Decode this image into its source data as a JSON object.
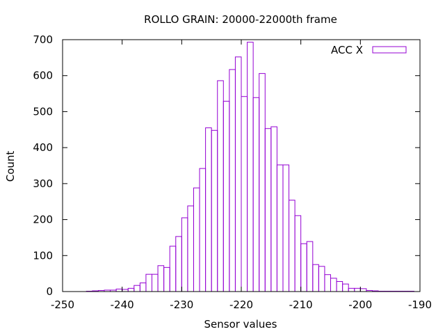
{
  "chart_data": {
    "type": "bar",
    "title": "ROLLO GRAIN: 20000-22000th frame",
    "xlabel": "Sensor values",
    "ylabel": "Count",
    "xlim": [
      -250,
      -190
    ],
    "ylim": [
      0,
      700
    ],
    "xticks": [
      -250,
      -240,
      -230,
      -220,
      -210,
      -200,
      -190
    ],
    "yticks": [
      0,
      100,
      200,
      300,
      400,
      500,
      600,
      700
    ],
    "grid": false,
    "legend_position": "top-right",
    "bin_width": 1,
    "series": [
      {
        "name": "ACC X",
        "color": "#9400D3",
        "bin_starts": [
          -246,
          -245,
          -244,
          -243,
          -242,
          -241,
          -240,
          -239,
          -238,
          -237,
          -236,
          -235,
          -234,
          -233,
          -232,
          -231,
          -230,
          -229,
          -228,
          -227,
          -226,
          -225,
          -224,
          -223,
          -222,
          -221,
          -220,
          -219,
          -218,
          -217,
          -216,
          -215,
          -214,
          -213,
          -212,
          -211,
          -210,
          -209,
          -208,
          -207,
          -206,
          -205,
          -204,
          -203,
          -202,
          -201,
          -200,
          -199,
          -198,
          -197,
          -196,
          -195,
          -194,
          -193,
          -192
        ],
        "values": [
          1,
          2,
          3,
          4,
          4,
          7,
          6,
          9,
          17,
          24,
          48,
          48,
          72,
          67,
          126,
          153,
          205,
          238,
          288,
          342,
          455,
          448,
          586,
          529,
          617,
          652,
          542,
          693,
          539,
          606,
          453,
          458,
          352,
          352,
          254,
          211,
          133,
          139,
          75,
          70,
          47,
          37,
          28,
          21,
          9,
          9,
          8,
          3,
          2,
          1,
          1,
          1,
          1,
          1,
          1
        ]
      }
    ]
  }
}
